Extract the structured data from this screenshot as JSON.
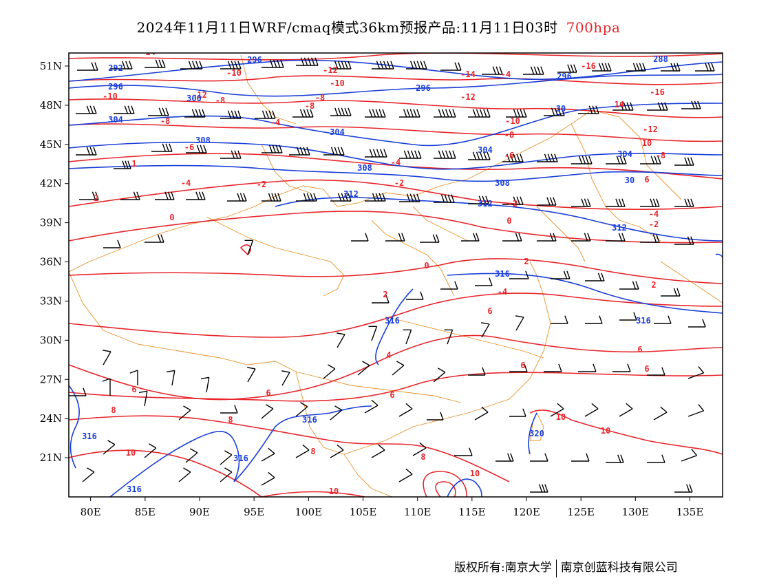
{
  "header": {
    "title": "2024年11月11日WRF/cmaq模式36km预报产品:11月11日03时",
    "level": "700hpa"
  },
  "map": {
    "lon_range": [
      78,
      138
    ],
    "lat_range": [
      18,
      52
    ],
    "lon_ticks": [
      "80E",
      "85E",
      "90E",
      "95E",
      "100E",
      "105E",
      "110E",
      "115E",
      "120E",
      "125E",
      "130E",
      "135E"
    ],
    "lat_ticks": [
      "51N",
      "48N",
      "45N",
      "42N",
      "39N",
      "36N",
      "33N",
      "30N",
      "27N",
      "24N",
      "21N"
    ],
    "colors": {
      "temperature": "#e8262b",
      "height": "#1a3fd8",
      "boundary": "#e8902a",
      "wind": "#000000"
    },
    "temperature_labels": [
      "-14",
      "-12",
      "-10",
      "-8",
      "-6",
      "-4",
      "-2",
      "0",
      "2",
      "4",
      "6",
      "8",
      "10",
      "-16"
    ],
    "height_labels": [
      "288",
      "292",
      "296",
      "304",
      "308",
      "312",
      "316",
      "320"
    ]
  },
  "footer": {
    "copyright_left": "版权所有:南京大学",
    "copyright_right": "南京创蓝科技有限公司"
  }
}
